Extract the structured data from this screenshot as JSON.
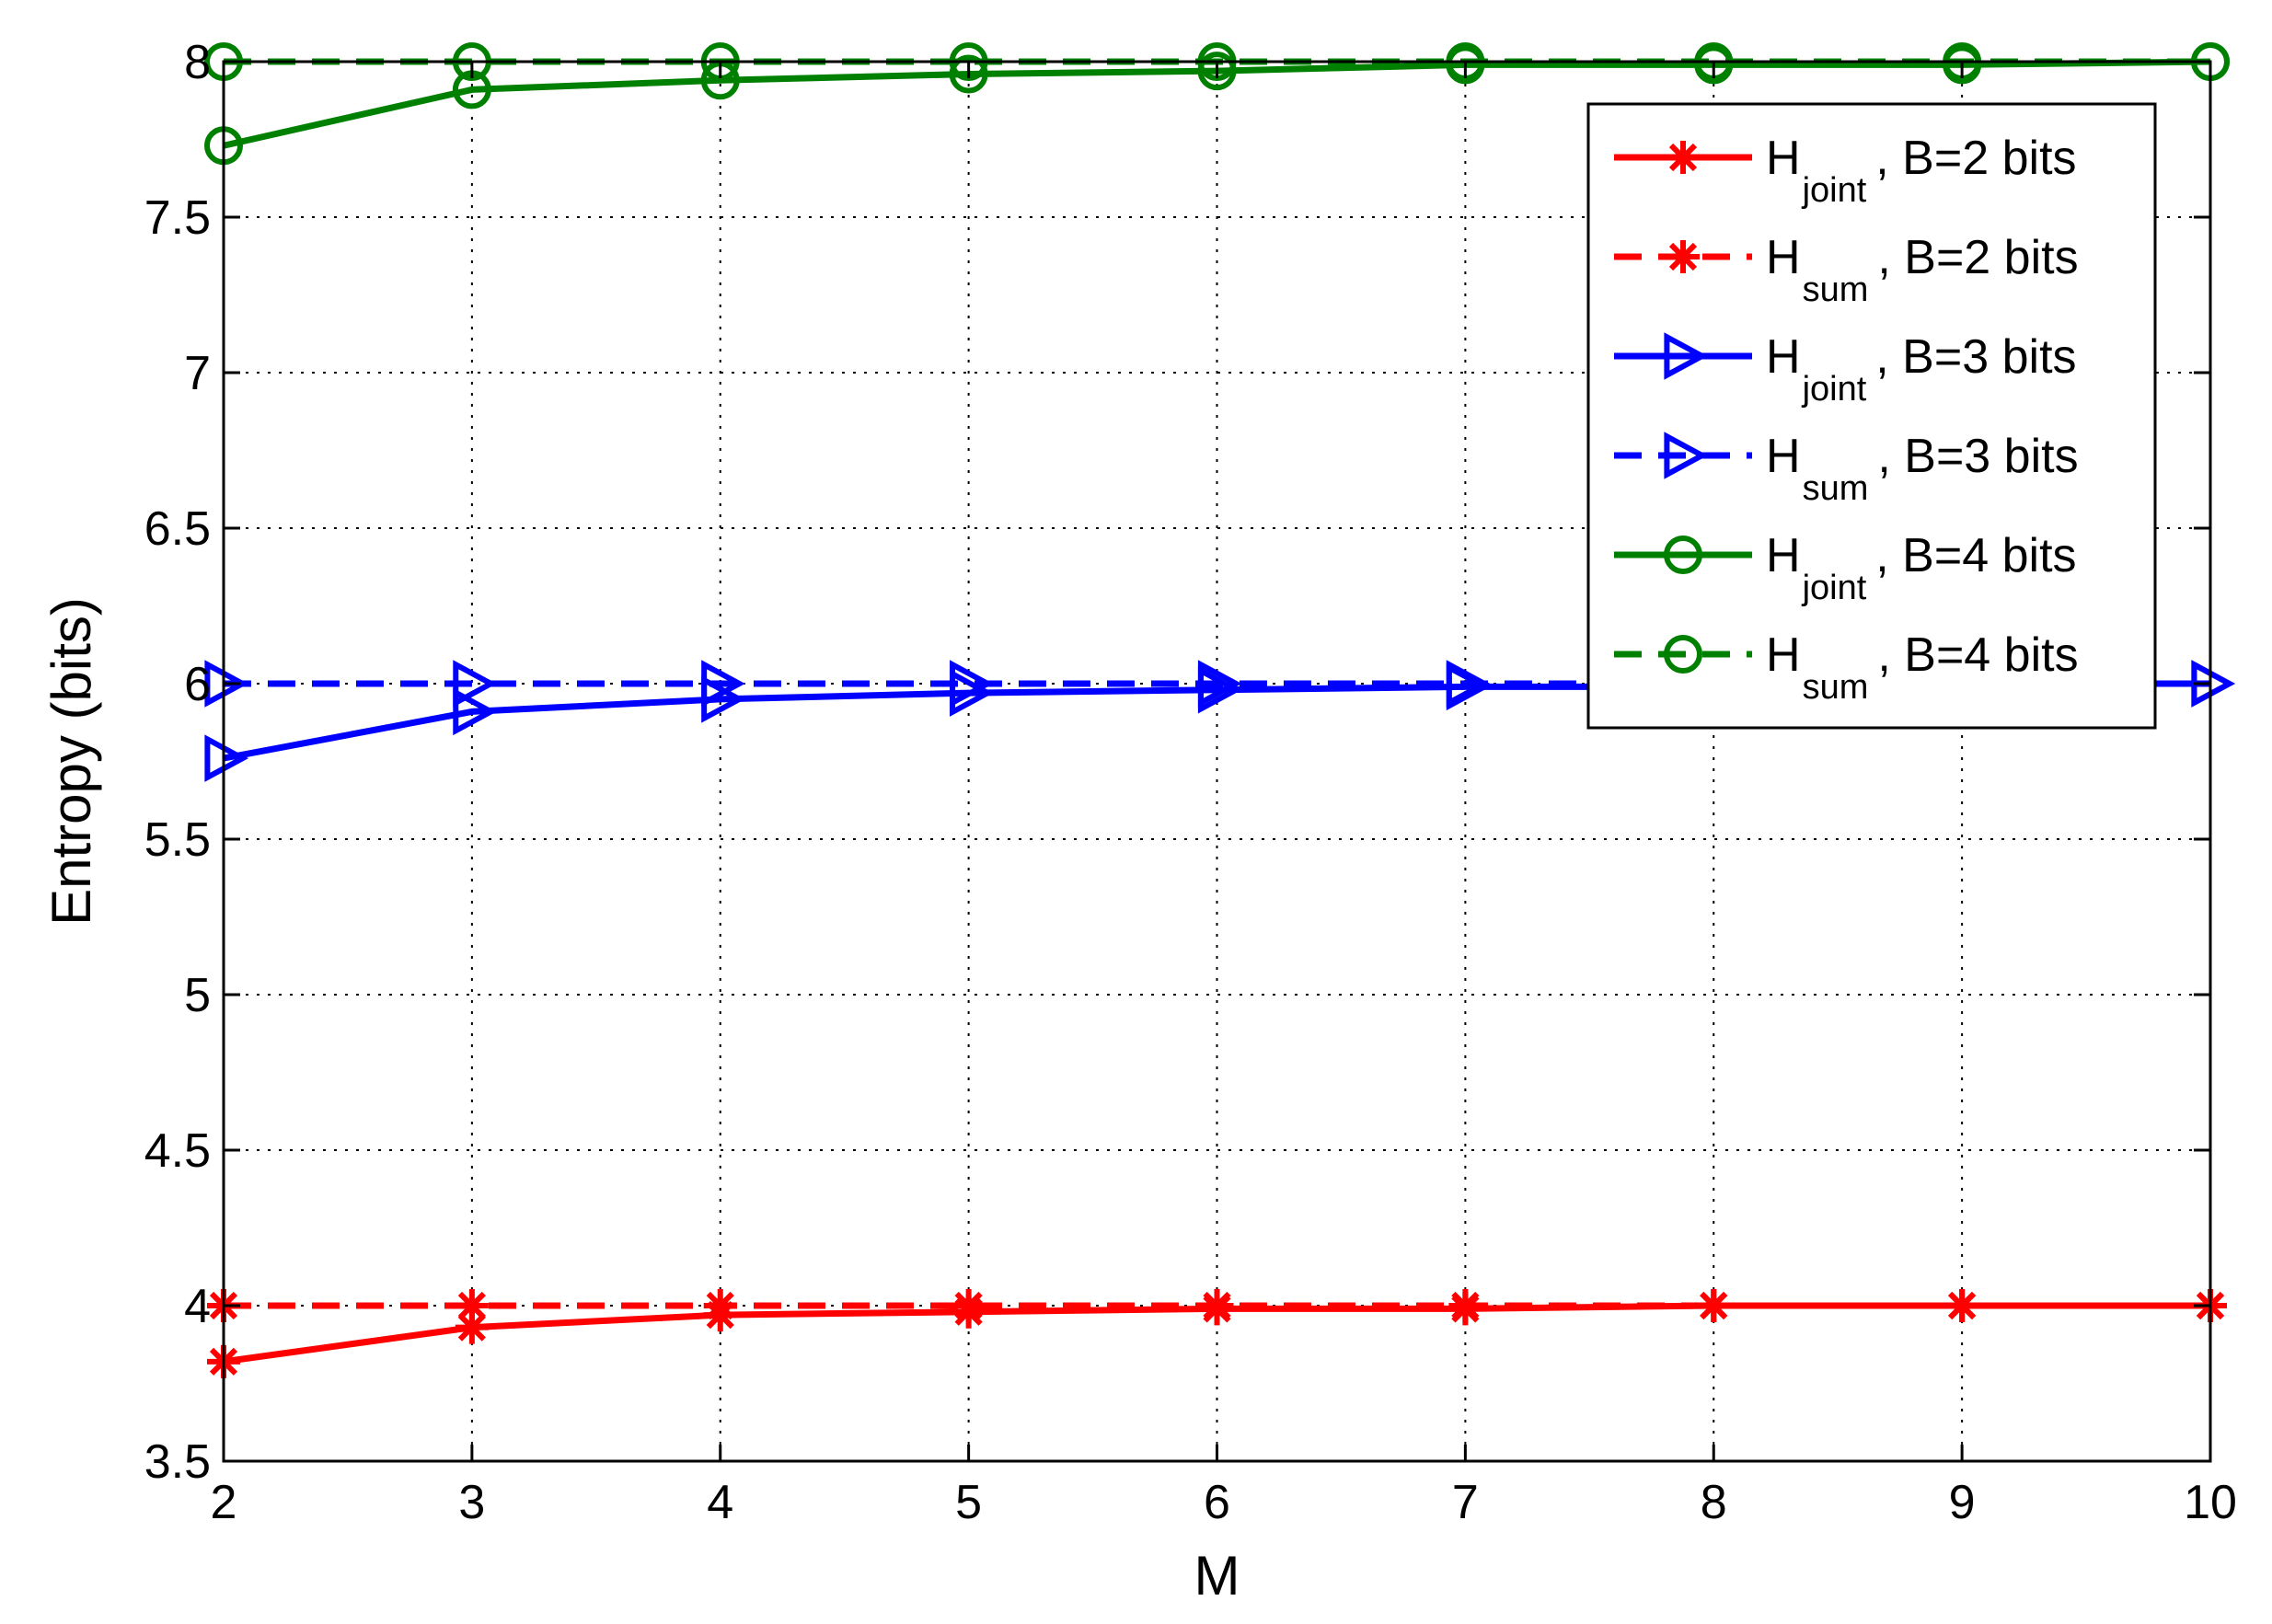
{
  "chart_data": {
    "type": "line",
    "xlabel": "M",
    "ylabel": "Entropy (bits)",
    "xlim": [
      2,
      10
    ],
    "ylim": [
      3.5,
      8
    ],
    "xticks": [
      2,
      3,
      4,
      5,
      6,
      7,
      8,
      9,
      10
    ],
    "xtick_labels": [
      "2",
      "3",
      "4",
      "5",
      "6",
      "7",
      "8",
      "9",
      "10"
    ],
    "yticks": [
      3.5,
      4,
      4.5,
      5,
      5.5,
      6,
      6.5,
      7,
      7.5,
      8
    ],
    "ytick_labels": [
      "3.5",
      "4",
      "4.5",
      "5",
      "5.5",
      "6",
      "6.5",
      "7",
      "7.5",
      "8"
    ],
    "grid": true,
    "legend_position": "top-right",
    "x": [
      2,
      3,
      4,
      5,
      6,
      7,
      8,
      9,
      10
    ],
    "series": [
      {
        "name": "H_joint , B=2 bits",
        "legend_main": "H",
        "legend_sub": "joint",
        "legend_rest": ", B=2 bits",
        "color": "#ff0000",
        "dash": "solid",
        "marker": "asterisk",
        "values": [
          3.82,
          3.93,
          3.97,
          3.98,
          3.99,
          3.99,
          4.0,
          4.0,
          4.0
        ]
      },
      {
        "name": "H_sum , B=2 bits",
        "legend_main": "H",
        "legend_sub": "sum",
        "legend_rest": ", B=2 bits",
        "color": "#ff0000",
        "dash": "dashed",
        "marker": "asterisk",
        "values": [
          4.0,
          4.0,
          4.0,
          4.0,
          4.0,
          4.0,
          4.0,
          4.0,
          4.0
        ]
      },
      {
        "name": "H_joint , B=3 bits",
        "legend_main": "H",
        "legend_sub": "joint",
        "legend_rest": ", B=3 bits",
        "color": "#0000ff",
        "dash": "solid",
        "marker": "triangle-right",
        "values": [
          5.76,
          5.91,
          5.95,
          5.97,
          5.98,
          5.99,
          5.99,
          6.0,
          6.0
        ]
      },
      {
        "name": "H_sum , B=3 bits",
        "legend_main": "H",
        "legend_sub": "sum",
        "legend_rest": ", B=3 bits",
        "color": "#0000ff",
        "dash": "dashed",
        "marker": "triangle-right",
        "values": [
          6.0,
          6.0,
          6.0,
          6.0,
          6.0,
          6.0,
          6.0,
          6.0,
          6.0
        ]
      },
      {
        "name": "H_joint , B=4 bits",
        "legend_main": "H",
        "legend_sub": "joint",
        "legend_rest": ", B=4 bits",
        "color": "#008000",
        "dash": "solid",
        "marker": "circle",
        "values": [
          7.73,
          7.91,
          7.94,
          7.96,
          7.97,
          7.99,
          7.99,
          7.99,
          8.0
        ]
      },
      {
        "name": "H_sum , B=4 bits",
        "legend_main": "H",
        "legend_sub": "sum",
        "legend_rest": ", B=4 bits",
        "color": "#008000",
        "dash": "dashed",
        "marker": "circle",
        "values": [
          8.0,
          8.0,
          8.0,
          8.0,
          8.0,
          8.0,
          8.0,
          8.0,
          8.0
        ]
      }
    ]
  }
}
